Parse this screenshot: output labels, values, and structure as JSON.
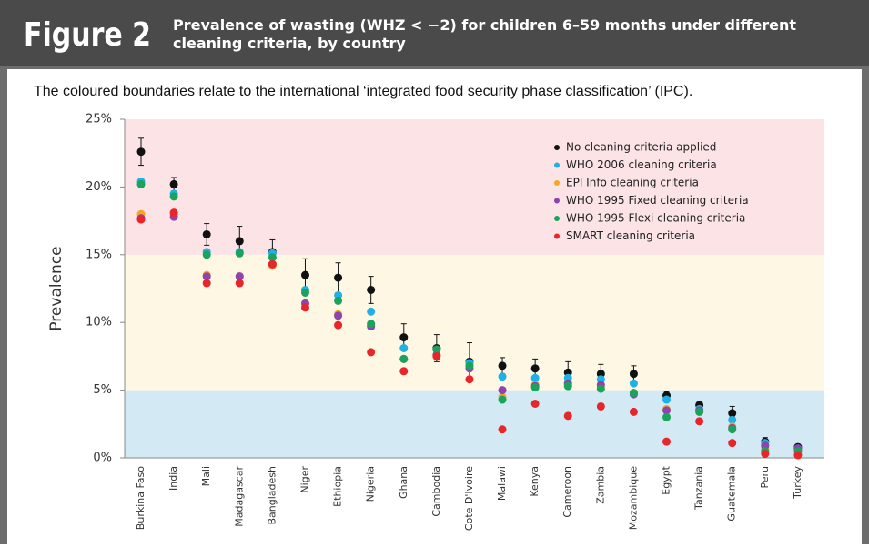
{
  "chart_data": {
    "type": "scatter",
    "figure_label": "Figure 2",
    "title": "Prevalence of wasting (WHZ < −2) for children 6–59 months under different cleaning criteria, by country",
    "subtitle": "The coloured boundaries relate to the international ‘integrated food security phase classification’ (IPC).",
    "ylabel": "Prevalence",
    "categories": [
      "Burkina Faso",
      "India",
      "Mali",
      "Madagascar",
      "Bangladesh",
      "Niger",
      "Ethiopia",
      "Nigeria",
      "Ghana",
      "Cambodia",
      "Cote D'Ivoire",
      "Malawi",
      "Kenya",
      "Cameroon",
      "Zambia",
      "Mozambique",
      "Egypt",
      "Tanzania",
      "Guatemala",
      "Peru",
      "Turkey"
    ],
    "series": [
      {
        "name": "No cleaning criteria applied",
        "color": "#111111",
        "values": [
          22.6,
          20.2,
          16.5,
          16.0,
          15.2,
          13.5,
          13.3,
          12.4,
          8.9,
          8.1,
          7.1,
          6.8,
          6.6,
          6.3,
          6.2,
          6.2,
          4.6,
          3.9,
          3.3,
          1.2,
          0.8
        ],
        "errors": [
          1.0,
          0.5,
          0.8,
          1.1,
          0.9,
          1.2,
          1.1,
          1.0,
          1.0,
          1.0,
          1.4,
          0.6,
          0.7,
          0.8,
          0.7,
          0.6,
          0.3,
          0.3,
          0.5,
          0.3,
          0.2
        ]
      },
      {
        "name": "WHO 2006 cleaning criteria",
        "color": "#1fb0e6",
        "values": [
          20.4,
          19.5,
          15.2,
          15.2,
          15.1,
          12.4,
          12.0,
          10.8,
          8.1,
          8.0,
          7.0,
          6.0,
          5.9,
          5.9,
          5.8,
          5.5,
          4.3,
          3.6,
          2.8,
          1.1,
          0.7
        ]
      },
      {
        "name": "EPI Info cleaning criteria",
        "color": "#f5a623",
        "values": [
          18.0,
          18.0,
          13.5,
          13.4,
          14.2,
          11.4,
          10.6,
          9.8,
          7.3,
          7.6,
          6.8,
          4.5,
          5.4,
          5.4,
          5.3,
          4.8,
          3.6,
          3.4,
          2.3,
          0.7,
          0.5
        ]
      },
      {
        "name": "WHO 1995 Fixed cleaning criteria",
        "color": "#8e44ad",
        "values": [
          17.7,
          17.8,
          13.4,
          13.4,
          14.3,
          11.4,
          10.5,
          9.7,
          7.3,
          7.6,
          6.6,
          5.0,
          5.3,
          5.5,
          5.4,
          4.7,
          3.5,
          3.5,
          2.2,
          0.9,
          0.7
        ]
      },
      {
        "name": "WHO 1995 Flexi cleaning criteria",
        "color": "#1aa35a",
        "values": [
          20.2,
          19.3,
          15.0,
          15.1,
          14.8,
          12.2,
          11.6,
          9.9,
          7.3,
          8.0,
          6.8,
          4.3,
          5.2,
          5.3,
          5.1,
          4.8,
          3.0,
          3.4,
          2.1,
          0.5,
          0.5
        ]
      },
      {
        "name": "SMART cleaning criteria",
        "color": "#e8262a",
        "values": [
          17.6,
          18.1,
          12.9,
          12.9,
          14.3,
          11.1,
          9.8,
          7.8,
          6.4,
          7.5,
          5.8,
          2.1,
          4.0,
          3.1,
          3.8,
          3.4,
          1.2,
          2.7,
          1.1,
          0.3,
          0.2
        ]
      }
    ],
    "bands": [
      {
        "from": 0,
        "to": 5,
        "color": "#d3e9f4"
      },
      {
        "from": 5,
        "to": 15,
        "color": "#fdf7e4"
      },
      {
        "from": 15,
        "to": 25,
        "color": "#fbe3e6"
      }
    ],
    "ylim": [
      0,
      25
    ],
    "yticks": [
      {
        "value": 0,
        "label": "0%"
      },
      {
        "value": 5,
        "label": "5%"
      },
      {
        "value": 10,
        "label": "10%"
      },
      {
        "value": 15,
        "label": "15%"
      },
      {
        "value": 20,
        "label": "20%"
      },
      {
        "value": 25,
        "label": "25%"
      }
    ],
    "legend": "upper right"
  }
}
